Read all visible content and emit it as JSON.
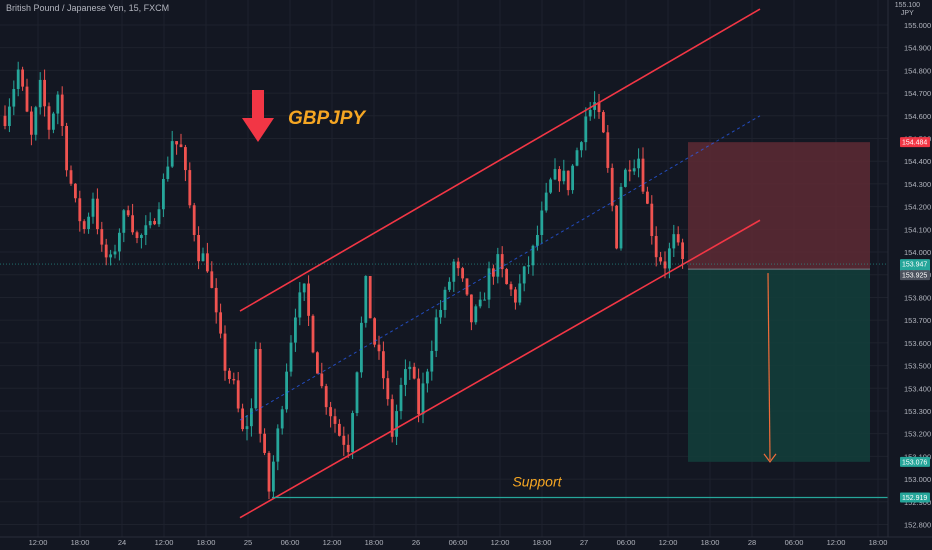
{
  "header": {
    "symbol_title": "British Pound / Japanese Yen, 15, FXCM",
    "currency_top": "155.100",
    "currency": "JPY"
  },
  "annotations": {
    "pair_label": "GBPJPY",
    "support_label": "Support"
  },
  "colors": {
    "background": "#131722",
    "up_candle": "#26a69a",
    "down_candle": "#ef5350",
    "channel_line": "#f23645",
    "pair_label": "#f5a623",
    "arrow": "#f23645",
    "stop_zone": "#5e2a34",
    "target_zone": "#133d3a",
    "support_line": "#26a69a",
    "midline": "#2962ff",
    "axis_text": "#b2b5be"
  },
  "chart_data": {
    "type": "candlestick",
    "symbol": "GBPJPY",
    "timeframe": "15",
    "y_axis": {
      "ticks": [
        "155.000",
        "154.900",
        "154.800",
        "154.700",
        "154.600",
        "154.500",
        "154.400",
        "154.300",
        "154.200",
        "154.100",
        "154.000",
        "153.900",
        "153.800",
        "153.700",
        "153.600",
        "153.500",
        "153.400",
        "153.300",
        "153.200",
        "153.100",
        "153.000",
        "152.900",
        "152.800"
      ],
      "range": [
        152.745,
        155.11
      ]
    },
    "x_axis": {
      "ticks": [
        "12:00",
        "18:00",
        "24",
        "12:00",
        "18:00",
        "25",
        "06:00",
        "12:00",
        "18:00",
        "26",
        "06:00",
        "12:00",
        "18:00",
        "27",
        "06:00",
        "12:00",
        "18:00",
        "28",
        "06:00",
        "12:00",
        "18:00"
      ]
    },
    "price_badges": [
      {
        "label": "stop",
        "value": "154.484",
        "color": "#f23645"
      },
      {
        "label": "current",
        "value": "153.947",
        "sub": "12:34",
        "color": "#26a69a"
      },
      {
        "label": "entry",
        "value": "153.925",
        "color": "#4c525e"
      },
      {
        "label": "target",
        "value": "153.076",
        "color": "#26a69a"
      },
      {
        "label": "support",
        "value": "152.919",
        "color": "#26a69a"
      }
    ],
    "path": [
      [
        0,
        154.6
      ],
      [
        3,
        154.8
      ],
      [
        6,
        154.5
      ],
      [
        8,
        154.72
      ],
      [
        10,
        154.55
      ],
      [
        12,
        154.7
      ],
      [
        14,
        154.4
      ],
      [
        16,
        154.2
      ],
      [
        18,
        154.1
      ],
      [
        20,
        154.25
      ],
      [
        22,
        154.0
      ],
      [
        24,
        153.95
      ],
      [
        26,
        154.1
      ],
      [
        28,
        154.2
      ],
      [
        30,
        154.05
      ],
      [
        33,
        154.1
      ],
      [
        36,
        154.3
      ],
      [
        38,
        154.5
      ],
      [
        40,
        154.45
      ],
      [
        42,
        154.2
      ],
      [
        44,
        154.0
      ],
      [
        46,
        153.95
      ],
      [
        48,
        153.7
      ],
      [
        50,
        153.5
      ],
      [
        52,
        153.4
      ],
      [
        54,
        153.2
      ],
      [
        56,
        153.3
      ],
      [
        57,
        153.6
      ],
      [
        58,
        153.2
      ],
      [
        60,
        152.95
      ],
      [
        62,
        153.2
      ],
      [
        64,
        153.5
      ],
      [
        66,
        153.75
      ],
      [
        68,
        153.82
      ],
      [
        70,
        153.6
      ],
      [
        72,
        153.4
      ],
      [
        74,
        153.3
      ],
      [
        76,
        153.2
      ],
      [
        78,
        153.15
      ],
      [
        80,
        153.5
      ],
      [
        82,
        153.85
      ],
      [
        84,
        153.6
      ],
      [
        86,
        153.45
      ],
      [
        88,
        153.2
      ],
      [
        90,
        153.4
      ],
      [
        92,
        153.5
      ],
      [
        94,
        153.3
      ],
      [
        96,
        153.5
      ],
      [
        98,
        153.7
      ],
      [
        100,
        153.8
      ],
      [
        102,
        153.95
      ],
      [
        104,
        153.85
      ],
      [
        106,
        153.7
      ],
      [
        108,
        153.75
      ],
      [
        110,
        153.9
      ],
      [
        112,
        153.95
      ],
      [
        114,
        153.85
      ],
      [
        116,
        153.8
      ],
      [
        118,
        153.9
      ],
      [
        120,
        154.0
      ],
      [
        122,
        154.15
      ],
      [
        124,
        154.3
      ],
      [
        126,
        154.35
      ],
      [
        128,
        154.3
      ],
      [
        130,
        154.45
      ],
      [
        132,
        154.6
      ],
      [
        134,
        154.65
      ],
      [
        136,
        154.5
      ],
      [
        138,
        154.2
      ],
      [
        139,
        154.05
      ],
      [
        140,
        154.3
      ],
      [
        142,
        154.4
      ],
      [
        144,
        154.42
      ],
      [
        146,
        154.2
      ],
      [
        148,
        154.0
      ],
      [
        150,
        153.95
      ],
      [
        152,
        154.05
      ],
      [
        154,
        153.95
      ],
      [
        155,
        153.94
      ]
    ],
    "trade_setup": {
      "direction": "short",
      "entry": 153.925,
      "stop": 154.484,
      "target": 153.076
    },
    "support_level": 152.919
  }
}
